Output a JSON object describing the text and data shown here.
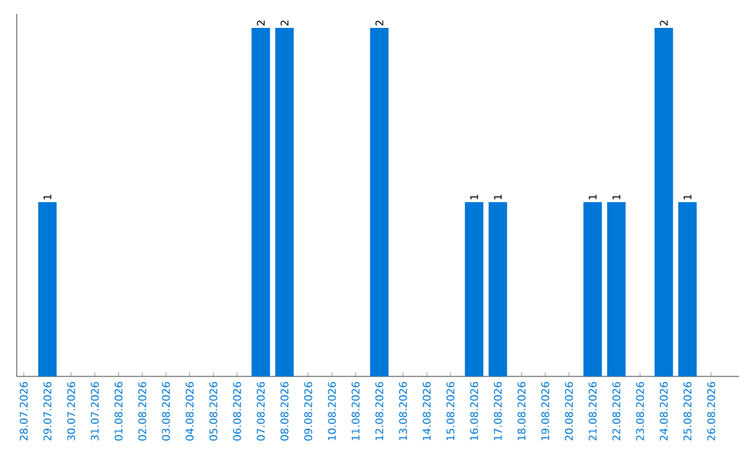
{
  "chart_data": {
    "type": "bar",
    "color": "#0078d7",
    "categories": [
      "28.07.2026",
      "29.07.2026",
      "30.07.2026",
      "31.07.2026",
      "01.08.2026",
      "02.08.2026",
      "03.08.2026",
      "04.08.2026",
      "05.08.2026",
      "06.08.2026",
      "07.08.2026",
      "08.08.2026",
      "09.08.2026",
      "10.08.2026",
      "11.08.2026",
      "12.08.2026",
      "13.08.2026",
      "14.08.2026",
      "15.08.2026",
      "16.08.2026",
      "17.08.2026",
      "18.08.2026",
      "19.08.2026",
      "20.08.2026",
      "21.08.2026",
      "22.08.2026",
      "23.08.2026",
      "24.08.2026",
      "25.08.2026",
      "26.08.2026"
    ],
    "values": [
      0,
      1,
      0,
      0,
      0,
      0,
      0,
      0,
      0,
      0,
      2,
      2,
      0,
      0,
      0,
      2,
      0,
      0,
      0,
      1,
      1,
      0,
      0,
      0,
      1,
      1,
      0,
      2,
      1,
      0
    ],
    "value_labels": [
      null,
      "1",
      null,
      null,
      null,
      null,
      null,
      null,
      null,
      null,
      "2",
      "2",
      null,
      null,
      null,
      "2",
      null,
      null,
      null,
      "1",
      "1",
      null,
      null,
      null,
      "1",
      "1",
      null,
      "2",
      "1",
      null
    ],
    "grid": false
  }
}
